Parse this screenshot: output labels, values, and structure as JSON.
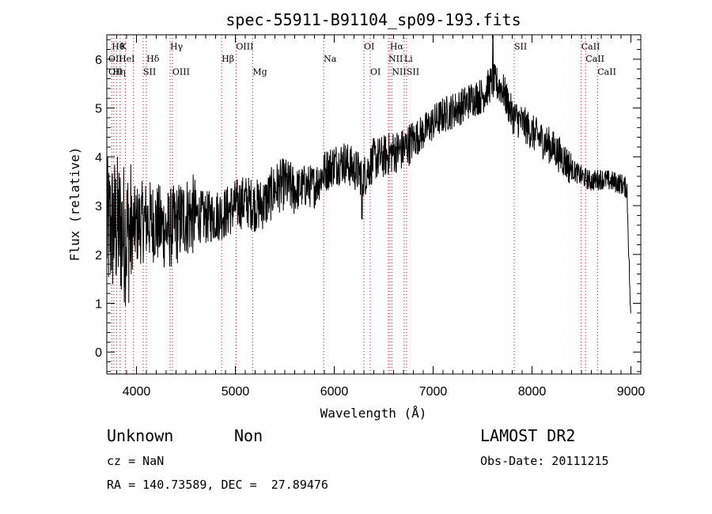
{
  "chart_data": {
    "type": "line",
    "title": "spec-55911-B91104_sp09-193.fits",
    "xlabel": "Wavelength (Å)",
    "ylabel": "Flux (relative)",
    "xlim": [
      3700,
      9100
    ],
    "ylim": [
      -0.45,
      6.5
    ],
    "xticks": [
      4000,
      5000,
      6000,
      7000,
      8000,
      9000
    ],
    "yticks": [
      0,
      1,
      2,
      3,
      4,
      5,
      6
    ],
    "line_color": "#000000",
    "marker_color": "#cc0000",
    "series": [
      {
        "x": [
          3700,
          3800,
          3900,
          4000,
          4100,
          4200,
          4300,
          4400,
          4500,
          4600,
          4700,
          4800,
          4900,
          5000,
          5100,
          5200,
          5300,
          5400,
          5500,
          5600,
          5700,
          5800,
          5900,
          6000,
          6100,
          6200,
          6300,
          6400,
          6500,
          6600,
          6700,
          6800,
          6900,
          7000,
          7100,
          7200,
          7300,
          7400,
          7500,
          7600,
          7700,
          7800,
          7900,
          8000,
          8100,
          8200,
          8300,
          8400,
          8500,
          8600,
          8700,
          8800,
          8900,
          8960,
          9000
        ],
        "y": [
          2.5,
          2.6,
          2.4,
          2.6,
          2.7,
          2.65,
          2.5,
          2.6,
          2.8,
          2.8,
          2.75,
          2.8,
          2.85,
          3.0,
          3.1,
          3.0,
          3.05,
          3.35,
          3.45,
          3.3,
          3.4,
          3.4,
          3.7,
          3.85,
          3.9,
          3.75,
          3.6,
          3.95,
          4.0,
          4.1,
          4.15,
          4.35,
          4.5,
          4.7,
          4.85,
          4.95,
          5.05,
          5.2,
          5.25,
          5.55,
          5.4,
          4.85,
          4.7,
          4.5,
          4.35,
          4.2,
          4.0,
          3.75,
          3.6,
          3.5,
          3.55,
          3.5,
          3.45,
          3.35,
          0.5
        ]
      }
    ],
    "annotations": [
      {
        "x": 3750,
        "y": 6.2,
        "text": "Hθ"
      },
      {
        "x": 3835,
        "y": 6.2,
        "text": "K"
      },
      {
        "x": 3700,
        "y": 5.95,
        "text": "OII"
      },
      {
        "x": 3820,
        "y": 5.95,
        "text": "HeI"
      },
      {
        "x": 4101,
        "y": 5.95,
        "text": "Hδ"
      },
      {
        "x": 3700,
        "y": 5.68,
        "text": "OII"
      },
      {
        "x": 3760,
        "y": 5.68,
        "text": "Hη"
      },
      {
        "x": 4068,
        "y": 5.68,
        "text": "SII"
      },
      {
        "x": 4340,
        "y": 6.2,
        "text": "Hγ"
      },
      {
        "x": 4363,
        "y": 5.68,
        "text": "OIII"
      },
      {
        "x": 4861,
        "y": 5.95,
        "text": "Hβ"
      },
      {
        "x": 5007,
        "y": 6.2,
        "text": "OIII"
      },
      {
        "x": 5175,
        "y": 5.68,
        "text": "Mg"
      },
      {
        "x": 5893,
        "y": 5.95,
        "text": "Na"
      },
      {
        "x": 6300,
        "y": 6.2,
        "text": "OI"
      },
      {
        "x": 6364,
        "y": 5.68,
        "text": "OI"
      },
      {
        "x": 6563,
        "y": 6.2,
        "text": "Hα"
      },
      {
        "x": 6548,
        "y": 5.95,
        "text": "NII"
      },
      {
        "x": 6583,
        "y": 5.68,
        "text": "NII"
      },
      {
        "x": 6707,
        "y": 5.95,
        "text": "Li"
      },
      {
        "x": 6731,
        "y": 5.68,
        "text": "SII"
      },
      {
        "x": 7820,
        "y": 6.2,
        "text": "SII"
      },
      {
        "x": 8498,
        "y": 6.2,
        "text": "CaII"
      },
      {
        "x": 8542,
        "y": 5.95,
        "text": "CaII"
      },
      {
        "x": 8662,
        "y": 5.68,
        "text": "CaII"
      }
    ],
    "marker_lines": [
      3750,
      3771,
      3798,
      3835,
      3889,
      3970,
      4068,
      4101,
      4340,
      4363,
      4861,
      5007,
      5175,
      5893,
      6300,
      6364,
      6548,
      6563,
      6583,
      6707,
      6731,
      7820,
      8498,
      8542,
      8662
    ]
  },
  "info": {
    "class": "Unknown",
    "subclass": "Non",
    "cz": "cz = NaN",
    "coords": "RA = 140.73589, DEC =  27.89476",
    "survey": "LAMOST DR2",
    "obs_date": "Obs-Date: 20111215"
  }
}
